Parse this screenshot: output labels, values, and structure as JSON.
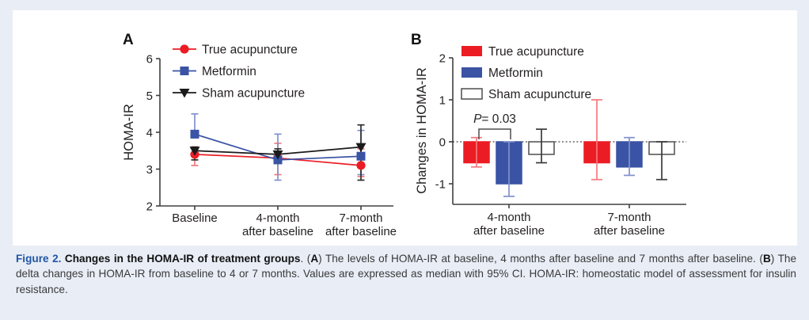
{
  "figure": {
    "panel_a_label": "A",
    "panel_b_label": "B"
  },
  "colors": {
    "true_acupuncture_red": "#ec1c24",
    "true_acupuncture_red_light": "#f4797e",
    "metformin_blue": "#3a53a4",
    "metformin_blue_light": "#8191cb",
    "sham_black": "#1a1a1a",
    "sham_gray": "#4d4d4d",
    "axis_gray": "#404041",
    "text_dark": "#231f20",
    "caption_blue": "#2156a5",
    "page_background": "#e8edf6"
  },
  "chart_data": [
    {
      "type": "line",
      "panel": "A",
      "title": "",
      "xlabel": "",
      "ylabel": "HOMA-IR",
      "ylim": [
        2,
        6
      ],
      "yticks": [
        2,
        3,
        4,
        5,
        6
      ],
      "grid": false,
      "legend_position": "top-left-inside",
      "categories": [
        [
          "Baseline"
        ],
        [
          "4-month",
          "after baseline"
        ],
        [
          "7-month",
          "after baseline"
        ]
      ],
      "series": [
        {
          "name": "True acupuncture",
          "marker": "circle",
          "color": "#ec1c24",
          "error_color": "#f4797e",
          "values": [
            3.4,
            3.3,
            3.1
          ],
          "ci": [
            [
              3.1,
              3.6
            ],
            [
              2.85,
              3.7
            ],
            [
              2.8,
              3.55
            ]
          ]
        },
        {
          "name": "Metformin",
          "marker": "square",
          "color": "#3a53a4",
          "error_color": "#8191cb",
          "values": [
            3.95,
            3.25,
            3.35
          ],
          "ci": [
            [
              3.85,
              4.5
            ],
            [
              2.7,
              3.95
            ],
            [
              2.85,
              4.05
            ]
          ]
        },
        {
          "name": "Sham acupuncture",
          "marker": "triangle-down",
          "color": "#1a1a1a",
          "error_color": "#2e2e2e",
          "values": [
            3.5,
            3.4,
            3.6
          ],
          "ci": [
            [
              3.25,
              3.6
            ],
            [
              3.25,
              3.55
            ],
            [
              2.7,
              4.2
            ]
          ]
        }
      ]
    },
    {
      "type": "bar",
      "panel": "B",
      "title": "",
      "xlabel": "",
      "ylabel": "Changes in HOMA-IR",
      "ylim": [
        -1.5,
        2
      ],
      "yticks": [
        -1,
        0,
        1,
        2
      ],
      "grid": false,
      "zero_line": "dotted",
      "legend_position": "top-left-inside",
      "categories": [
        [
          "4-month",
          "after baseline"
        ],
        [
          "7-month",
          "after baseline"
        ]
      ],
      "series": [
        {
          "name": "True acupuncture",
          "fill": "#ec1c24",
          "stroke": "#ec1c24",
          "error_color": "#f4797e",
          "values": [
            -0.5,
            -0.5
          ],
          "ci": [
            [
              -0.6,
              0.1
            ],
            [
              -0.9,
              1.0
            ]
          ]
        },
        {
          "name": "Metformin",
          "fill": "#3a53a4",
          "stroke": "#3a53a4",
          "error_color": "#8191cb",
          "values": [
            -1.0,
            -0.6
          ],
          "ci": [
            [
              -1.3,
              0.0
            ],
            [
              -0.8,
              0.1
            ]
          ]
        },
        {
          "name": "Sham acupuncture",
          "fill": "#ffffff",
          "stroke": "#4d4d4d",
          "error_color": "#3a3a3a",
          "values": [
            -0.3,
            -0.3
          ],
          "ci": [
            [
              -0.5,
              0.3
            ],
            [
              -0.9,
              0.0
            ]
          ]
        }
      ],
      "annotation": {
        "label_italic": "P",
        "label_rest": "= 0.03",
        "between": [
          "True acupuncture",
          "Metformin"
        ],
        "group": "4-month after baseline"
      }
    }
  ],
  "caption": {
    "segments": [
      {
        "text": "Figure 2.",
        "style": "figure-label"
      },
      {
        "text": " Changes in the HOMA-IR of treatment groups",
        "style": "bold"
      },
      {
        "text": ". (",
        "style": "plain"
      },
      {
        "text": "A",
        "style": "bold"
      },
      {
        "text": ") The levels of HOMA-IR at baseline, 4 months after baseline and 7 months after baseline. (",
        "style": "plain"
      },
      {
        "text": "B",
        "style": "bold"
      },
      {
        "text": ") The delta changes in HOMA-IR from baseline to 4 or 7 months. Values are expressed as median with 95% CI. HOMA-IR: homeostatic model of assessment for insulin resistance.",
        "style": "plain"
      }
    ]
  }
}
